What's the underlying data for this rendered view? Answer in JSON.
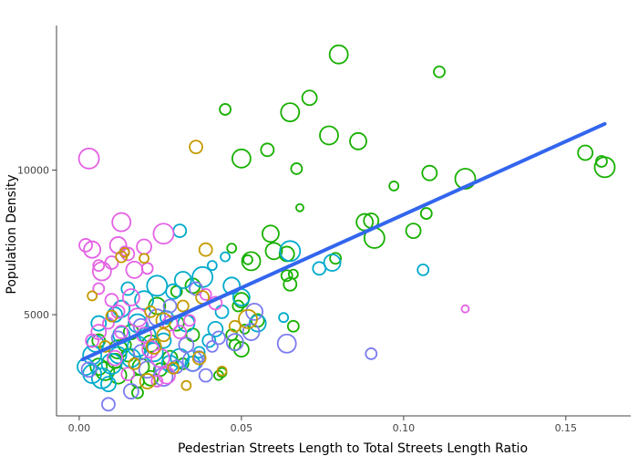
{
  "chart_data": {
    "type": "scatter",
    "title": "",
    "xlabel": "Pedestrian Streets Length to Total Streets Length Ratio",
    "ylabel": "Population Density",
    "xlim": [
      -0.007,
      0.17
    ],
    "ylim": [
      1500,
      15000
    ],
    "x_ticks": [
      0,
      0.05,
      0.1,
      0.15
    ],
    "x_tick_labels": [
      "0.00",
      "0.05",
      "0.10",
      "0.15"
    ],
    "y_ticks": [
      5000,
      10000
    ],
    "y_tick_labels": [
      "5000",
      "10000"
    ],
    "grid": false,
    "legend": "none",
    "trend_line": {
      "color": "#3366ee",
      "points": [
        [
          0.001,
          3450
        ],
        [
          0.162,
          11600
        ]
      ]
    },
    "series": [
      {
        "color": "#17b000",
        "points": [
          [
            0.08,
            14000,
            10
          ],
          [
            0.111,
            13400,
            6
          ],
          [
            0.071,
            12500,
            8
          ],
          [
            0.045,
            12100,
            6
          ],
          [
            0.065,
            12000,
            10
          ],
          [
            0.077,
            11200,
            10
          ],
          [
            0.086,
            11000,
            9
          ],
          [
            0.058,
            10700,
            7
          ],
          [
            0.05,
            10400,
            10
          ],
          [
            0.067,
            10050,
            6
          ],
          [
            0.108,
            9900,
            8
          ],
          [
            0.119,
            9700,
            11
          ],
          [
            0.097,
            9450,
            5
          ],
          [
            0.068,
            8700,
            4
          ],
          [
            0.088,
            8200,
            9
          ],
          [
            0.09,
            8250,
            8
          ],
          [
            0.091,
            7650,
            11
          ],
          [
            0.103,
            7900,
            8
          ],
          [
            0.107,
            8500,
            6
          ],
          [
            0.059,
            7800,
            9
          ],
          [
            0.06,
            7200,
            9
          ],
          [
            0.064,
            7100,
            8
          ],
          [
            0.052,
            6900,
            5
          ],
          [
            0.047,
            7300,
            5
          ],
          [
            0.053,
            6850,
            10
          ],
          [
            0.079,
            6950,
            6
          ],
          [
            0.064,
            6350,
            6
          ],
          [
            0.066,
            6400,
            5
          ],
          [
            0.065,
            6050,
            7
          ],
          [
            0.066,
            4600,
            6
          ],
          [
            0.05,
            5500,
            8
          ],
          [
            0.049,
            5300,
            6
          ],
          [
            0.055,
            4800,
            7
          ],
          [
            0.047,
            4300,
            6
          ],
          [
            0.051,
            4500,
            5
          ],
          [
            0.05,
            3800,
            8
          ],
          [
            0.048,
            3950,
            6
          ],
          [
            0.044,
            3000,
            5
          ],
          [
            0.043,
            2900,
            5
          ],
          [
            0.156,
            10600,
            8
          ],
          [
            0.161,
            10300,
            6
          ],
          [
            0.162,
            10100,
            11
          ],
          [
            0.018,
            2700,
            7
          ],
          [
            0.022,
            2800,
            8
          ],
          [
            0.012,
            2900,
            9
          ],
          [
            0.008,
            3050,
            10
          ],
          [
            0.006,
            3200,
            9
          ],
          [
            0.011,
            3400,
            8
          ],
          [
            0.015,
            3600,
            7
          ],
          [
            0.019,
            3200,
            9
          ],
          [
            0.025,
            3100,
            7
          ],
          [
            0.028,
            3500,
            8
          ],
          [
            0.032,
            3300,
            6
          ],
          [
            0.035,
            4300,
            7
          ],
          [
            0.03,
            4700,
            8
          ],
          [
            0.022,
            4000,
            9
          ],
          [
            0.016,
            4400,
            8
          ],
          [
            0.012,
            3800,
            10
          ],
          [
            0.006,
            4100,
            7
          ],
          [
            0.024,
            5300,
            9
          ],
          [
            0.035,
            6000,
            8
          ],
          [
            0.03,
            5800,
            6
          ],
          [
            0.018,
            2300,
            6
          ],
          [
            0.014,
            3950,
            7
          ]
        ]
      },
      {
        "color": "#00aacc",
        "points": [
          [
            0.106,
            6550,
            6
          ],
          [
            0.078,
            6800,
            9
          ],
          [
            0.074,
            6600,
            7
          ],
          [
            0.065,
            7200,
            11
          ],
          [
            0.045,
            7000,
            5
          ],
          [
            0.063,
            4900,
            5
          ],
          [
            0.055,
            4700,
            9
          ],
          [
            0.05,
            5600,
            9
          ],
          [
            0.047,
            6000,
            9
          ],
          [
            0.038,
            6300,
            11
          ],
          [
            0.032,
            6200,
            9
          ],
          [
            0.031,
            7900,
            7
          ],
          [
            0.041,
            6700,
            5
          ],
          [
            0.029,
            5800,
            8
          ],
          [
            0.024,
            6000,
            11
          ],
          [
            0.02,
            5500,
            10
          ],
          [
            0.015,
            5900,
            7
          ],
          [
            0.013,
            5200,
            9
          ],
          [
            0.011,
            5000,
            8
          ],
          [
            0.006,
            4700,
            8
          ],
          [
            0.005,
            4000,
            9
          ],
          [
            0.004,
            3600,
            10
          ],
          [
            0.002,
            3200,
            9
          ],
          [
            0.004,
            2950,
            10
          ],
          [
            0.007,
            2800,
            11
          ],
          [
            0.009,
            2600,
            8
          ],
          [
            0.01,
            3300,
            11
          ],
          [
            0.012,
            3600,
            9
          ],
          [
            0.016,
            3500,
            10
          ],
          [
            0.018,
            3900,
            11
          ],
          [
            0.021,
            4300,
            9
          ],
          [
            0.023,
            3700,
            10
          ],
          [
            0.026,
            4100,
            8
          ],
          [
            0.028,
            3300,
            9
          ],
          [
            0.031,
            3500,
            10
          ],
          [
            0.035,
            3300,
            8
          ],
          [
            0.037,
            3700,
            6
          ],
          [
            0.04,
            4100,
            7
          ],
          [
            0.042,
            4500,
            8
          ],
          [
            0.044,
            5100,
            7
          ],
          [
            0.033,
            4700,
            9
          ],
          [
            0.018,
            4700,
            10
          ],
          [
            0.013,
            4300,
            9
          ],
          [
            0.027,
            4900,
            7
          ]
        ]
      },
      {
        "color": "#7b7bf0",
        "points": [
          [
            0.09,
            3650,
            6
          ],
          [
            0.064,
            4000,
            10
          ],
          [
            0.054,
            5100,
            9
          ],
          [
            0.053,
            4400,
            9
          ],
          [
            0.048,
            4050,
            9
          ],
          [
            0.043,
            4200,
            7
          ],
          [
            0.041,
            3900,
            6
          ],
          [
            0.039,
            2900,
            7
          ],
          [
            0.035,
            3400,
            11
          ],
          [
            0.033,
            3950,
            8
          ],
          [
            0.03,
            3200,
            7
          ],
          [
            0.026,
            2850,
            10
          ],
          [
            0.021,
            3100,
            9
          ],
          [
            0.016,
            2350,
            8
          ],
          [
            0.009,
            1900,
            7
          ],
          [
            0.003,
            3100,
            8
          ],
          [
            0.012,
            4200,
            7
          ],
          [
            0.019,
            4600,
            8
          ],
          [
            0.024,
            4900,
            9
          ],
          [
            0.028,
            5300,
            7
          ],
          [
            0.037,
            3550,
            6
          ],
          [
            0.036,
            5900,
            7
          ],
          [
            0.019,
            3700,
            8
          ]
        ]
      },
      {
        "color": "#e462e4",
        "points": [
          [
            0.003,
            10400,
            11
          ],
          [
            0.002,
            7400,
            7
          ],
          [
            0.004,
            7250,
            9
          ],
          [
            0.006,
            6700,
            6
          ],
          [
            0.007,
            6500,
            10
          ],
          [
            0.01,
            6800,
            7
          ],
          [
            0.012,
            7400,
            9
          ],
          [
            0.015,
            7100,
            7
          ],
          [
            0.013,
            8200,
            10
          ],
          [
            0.02,
            7350,
            8
          ],
          [
            0.026,
            7800,
            11
          ],
          [
            0.021,
            6600,
            6
          ],
          [
            0.017,
            6550,
            9
          ],
          [
            0.014,
            7200,
            5
          ],
          [
            0.006,
            5900,
            6
          ],
          [
            0.01,
            5500,
            7
          ],
          [
            0.012,
            5100,
            7
          ],
          [
            0.016,
            5600,
            9
          ],
          [
            0.009,
            4700,
            6
          ],
          [
            0.006,
            4400,
            8
          ],
          [
            0.004,
            4100,
            7
          ],
          [
            0.013,
            4400,
            7
          ],
          [
            0.018,
            4900,
            10
          ],
          [
            0.02,
            4300,
            8
          ],
          [
            0.022,
            3800,
            9
          ],
          [
            0.025,
            3500,
            10
          ],
          [
            0.028,
            4700,
            8
          ],
          [
            0.031,
            4400,
            7
          ],
          [
            0.034,
            4800,
            6
          ],
          [
            0.039,
            5700,
            6
          ],
          [
            0.042,
            5400,
            7
          ],
          [
            0.119,
            5200,
            4
          ],
          [
            0.027,
            2900,
            9
          ],
          [
            0.024,
            2700,
            6
          ],
          [
            0.015,
            2950,
            7
          ],
          [
            0.011,
            3500,
            8
          ]
        ]
      },
      {
        "color": "#c49a00",
        "points": [
          [
            0.036,
            10800,
            7
          ],
          [
            0.039,
            7250,
            7
          ],
          [
            0.013,
            7000,
            6
          ],
          [
            0.014,
            7150,
            5
          ],
          [
            0.02,
            6950,
            5
          ],
          [
            0.004,
            5650,
            5
          ],
          [
            0.01,
            4950,
            6
          ],
          [
            0.022,
            5100,
            6
          ],
          [
            0.026,
            4800,
            8
          ],
          [
            0.032,
            5300,
            6
          ],
          [
            0.038,
            5600,
            7
          ],
          [
            0.052,
            4850,
            10
          ],
          [
            0.048,
            4600,
            6
          ],
          [
            0.044,
            3050,
            5
          ],
          [
            0.037,
            3500,
            7
          ],
          [
            0.029,
            3150,
            6
          ],
          [
            0.023,
            3900,
            8
          ],
          [
            0.017,
            3300,
            6
          ],
          [
            0.021,
            2700,
            8
          ],
          [
            0.033,
            2550,
            5
          ],
          [
            0.026,
            4300,
            7
          ],
          [
            0.008,
            3900,
            6
          ]
        ]
      }
    ]
  }
}
